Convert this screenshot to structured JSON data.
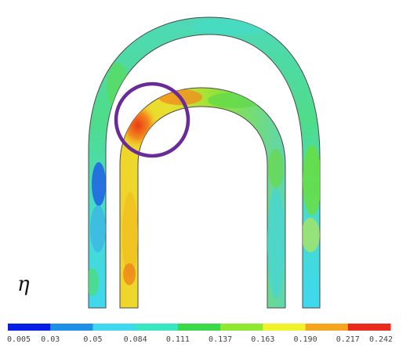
{
  "legend": {
    "symbol": "η",
    "ticks": [
      "0.005",
      "0.03",
      "0.05",
      "0.084",
      "0.111",
      "0.137",
      "0.163",
      "0.190",
      "0.217",
      "0.242"
    ],
    "colors": [
      "#0a1fe6",
      "#1e90e6",
      "#3fd8ee",
      "#38e8c0",
      "#39d94a",
      "#8fe832",
      "#f2f22a",
      "#f5a51e",
      "#ea2a1a"
    ]
  },
  "field_colors": {
    "outer_arch_base": "#3fd8ee",
    "outer_arch_top": "#4fdcb0",
    "inner_arch_base": "#e8e028",
    "inner_arch_top": "#5fe04a",
    "hotspot": "#ef4a1a",
    "coldspot": "#1e5fe6",
    "highlight_circle": "#6a2b9a"
  }
}
